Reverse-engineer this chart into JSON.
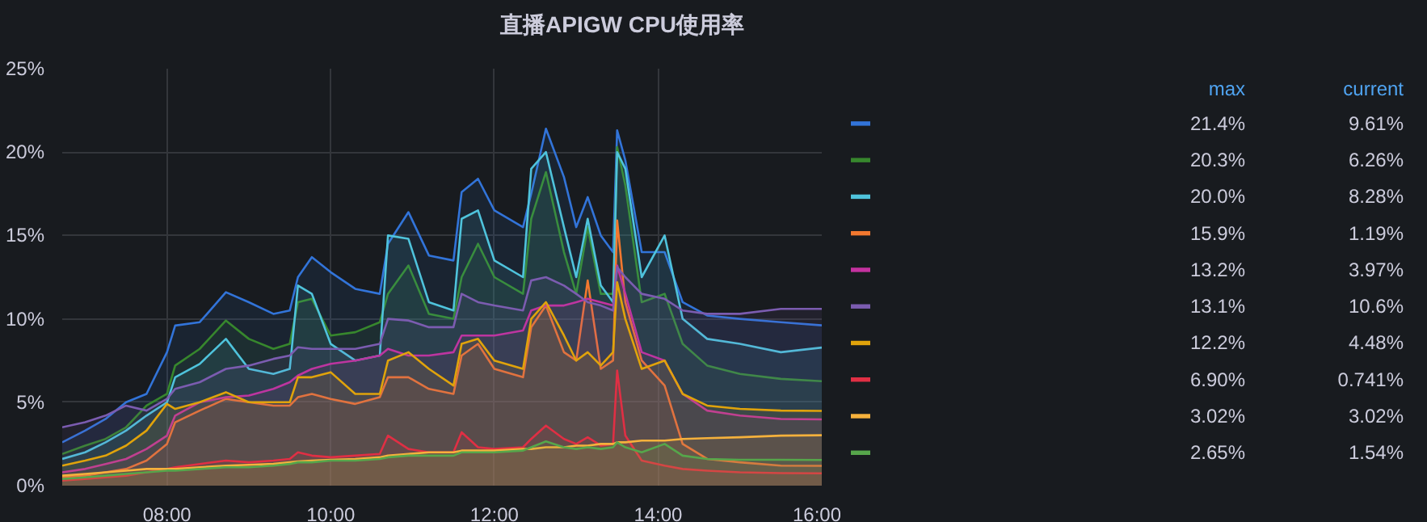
{
  "chart_data": {
    "type": "area",
    "title": "直播APIGW CPU使用率",
    "x": [
      6.72,
      7.0,
      7.25,
      7.5,
      7.75,
      8.0,
      8.1,
      8.4,
      8.72,
      9.0,
      9.3,
      9.5,
      9.6,
      9.77,
      10.0,
      10.3,
      10.6,
      10.7,
      10.95,
      11.2,
      11.5,
      11.6,
      11.8,
      12.0,
      12.35,
      12.45,
      12.63,
      12.85,
      13.0,
      13.14,
      13.3,
      13.45,
      13.5,
      13.6,
      13.8,
      14.08,
      14.3,
      14.6,
      15.0,
      15.5,
      16.0
    ],
    "series": [
      {
        "color": "#3274d9",
        "values": [
          2.6,
          3.3,
          4.0,
          5.0,
          5.5,
          8.0,
          9.6,
          9.8,
          11.6,
          11.0,
          10.3,
          10.5,
          12.5,
          13.7,
          12.8,
          11.8,
          11.5,
          14.5,
          16.4,
          13.8,
          13.5,
          17.6,
          18.4,
          16.5,
          15.5,
          17.5,
          21.4,
          18.5,
          15.5,
          17.3,
          15.0,
          14.0,
          21.3,
          19.5,
          14.0,
          14.0,
          11.0,
          10.2,
          10.0,
          9.8,
          9.61
        ]
      },
      {
        "color": "#37872d",
        "values": [
          1.9,
          2.4,
          2.8,
          3.5,
          4.8,
          5.5,
          7.2,
          8.2,
          9.9,
          8.8,
          8.2,
          8.5,
          11.0,
          11.2,
          9.0,
          9.2,
          9.8,
          11.5,
          13.2,
          10.3,
          10.0,
          12.5,
          14.5,
          12.5,
          11.5,
          16.0,
          18.8,
          14.0,
          11.5,
          15.5,
          11.5,
          11.5,
          20.3,
          18.0,
          11.0,
          11.5,
          8.5,
          7.2,
          6.7,
          6.4,
          6.26
        ]
      },
      {
        "color": "#4fc3dc",
        "values": [
          1.6,
          2.0,
          2.6,
          3.3,
          4.2,
          5.0,
          6.5,
          7.3,
          8.8,
          7.0,
          6.7,
          7.0,
          12.0,
          11.5,
          8.5,
          7.5,
          7.8,
          15.0,
          14.8,
          11.0,
          10.5,
          16.0,
          16.5,
          13.5,
          12.5,
          19.0,
          20.0,
          15.5,
          12.5,
          16.0,
          12.0,
          11.0,
          20.0,
          19.0,
          12.5,
          15.0,
          10.0,
          8.8,
          8.5,
          8.0,
          8.28
        ]
      },
      {
        "color": "#f2782f",
        "values": [
          0.5,
          0.6,
          0.8,
          1.0,
          1.5,
          2.5,
          3.8,
          4.5,
          5.2,
          5.0,
          4.8,
          4.8,
          5.3,
          5.5,
          5.2,
          4.9,
          5.3,
          6.5,
          6.5,
          5.8,
          5.5,
          7.8,
          8.5,
          7.0,
          6.5,
          9.5,
          10.8,
          8.0,
          7.5,
          12.3,
          7.0,
          7.5,
          15.9,
          11.0,
          7.5,
          6.0,
          2.5,
          1.6,
          1.4,
          1.2,
          1.19
        ]
      },
      {
        "color": "#c4329f",
        "values": [
          0.8,
          1.0,
          1.3,
          1.6,
          2.2,
          3.0,
          4.2,
          5.0,
          5.3,
          5.4,
          5.8,
          6.2,
          6.6,
          7.0,
          7.3,
          7.5,
          7.8,
          8.2,
          7.8,
          7.8,
          8.0,
          9.0,
          9.0,
          9.0,
          9.3,
          10.5,
          10.8,
          10.8,
          11.0,
          11.2,
          11.0,
          10.8,
          13.2,
          11.5,
          8.0,
          7.5,
          5.5,
          4.5,
          4.2,
          4.0,
          3.97
        ]
      },
      {
        "color": "#7b5cb0",
        "values": [
          3.5,
          3.8,
          4.2,
          4.8,
          4.5,
          5.2,
          5.8,
          6.2,
          7.0,
          7.2,
          7.6,
          7.8,
          8.3,
          8.2,
          8.2,
          8.2,
          8.5,
          10.0,
          9.9,
          9.5,
          9.5,
          11.5,
          11.0,
          10.8,
          10.5,
          12.3,
          12.5,
          12.0,
          11.5,
          11.0,
          10.8,
          10.5,
          13.1,
          12.5,
          11.5,
          11.2,
          10.5,
          10.3,
          10.3,
          10.6,
          10.6
        ]
      },
      {
        "color": "#e0a30b",
        "values": [
          1.2,
          1.5,
          1.8,
          2.4,
          3.3,
          4.9,
          4.6,
          5.0,
          5.6,
          5.0,
          5.0,
          5.0,
          6.5,
          6.5,
          6.8,
          5.5,
          5.5,
          7.5,
          8.0,
          7.0,
          6.0,
          8.5,
          8.8,
          7.5,
          7.0,
          10.0,
          11.0,
          9.0,
          7.5,
          8.0,
          7.2,
          8.0,
          12.2,
          10.0,
          7.0,
          7.5,
          5.5,
          4.8,
          4.6,
          4.5,
          4.48
        ]
      },
      {
        "color": "#e02f44",
        "values": [
          0.3,
          0.4,
          0.5,
          0.6,
          0.8,
          1.0,
          1.1,
          1.3,
          1.5,
          1.4,
          1.5,
          1.6,
          2.0,
          1.8,
          1.7,
          1.8,
          1.9,
          3.0,
          2.2,
          2.0,
          2.0,
          3.2,
          2.3,
          2.2,
          2.3,
          2.8,
          3.6,
          2.8,
          2.5,
          2.9,
          2.4,
          2.5,
          6.9,
          3.0,
          1.5,
          1.2,
          1.0,
          0.9,
          0.8,
          0.75,
          0.741
        ]
      },
      {
        "color": "#f5b13c",
        "values": [
          0.6,
          0.7,
          0.8,
          0.9,
          1.0,
          1.0,
          1.0,
          1.1,
          1.2,
          1.25,
          1.3,
          1.4,
          1.45,
          1.5,
          1.55,
          1.6,
          1.7,
          1.8,
          1.9,
          2.0,
          2.0,
          2.1,
          2.1,
          2.1,
          2.2,
          2.2,
          2.3,
          2.3,
          2.4,
          2.4,
          2.5,
          2.5,
          2.6,
          2.6,
          2.7,
          2.7,
          2.8,
          2.85,
          2.9,
          3.0,
          3.02
        ]
      },
      {
        "color": "#56a64b",
        "values": [
          0.4,
          0.5,
          0.6,
          0.7,
          0.8,
          0.9,
          0.9,
          1.0,
          1.1,
          1.1,
          1.2,
          1.3,
          1.4,
          1.4,
          1.5,
          1.5,
          1.6,
          1.7,
          1.8,
          1.8,
          1.8,
          2.0,
          2.0,
          2.0,
          2.1,
          2.3,
          2.65,
          2.3,
          2.2,
          2.3,
          2.2,
          2.3,
          2.6,
          2.3,
          2.0,
          2.5,
          1.8,
          1.6,
          1.55,
          1.55,
          1.54
        ]
      }
    ],
    "xlim": [
      6.72,
      16.0
    ],
    "xticks": [
      {
        "value": 8,
        "label": "08:00"
      },
      {
        "value": 10,
        "label": "10:00"
      },
      {
        "value": 12,
        "label": "12:00"
      },
      {
        "value": 14,
        "label": "14:00"
      },
      {
        "value": 16,
        "label": "16:00"
      }
    ],
    "ylim": [
      0,
      25
    ],
    "yticks": [
      {
        "value": 0,
        "label": "0%"
      },
      {
        "value": 5,
        "label": "5%"
      },
      {
        "value": 10,
        "label": "10%"
      },
      {
        "value": 15,
        "label": "15%"
      },
      {
        "value": 20,
        "label": "20%"
      },
      {
        "value": 25,
        "label": "25%"
      }
    ],
    "grid": true,
    "annotations": [
      "max",
      "current",
      "21.4%",
      "9.61%",
      "20.3%",
      "6.26%",
      "20.0%",
      "8.28%",
      "15.9%",
      "1.19%",
      "13.2%",
      "3.97%",
      "13.1%",
      "10.6%",
      "12.2%",
      "4.48%",
      "6.90%",
      "0.741%",
      "3.02%",
      "3.02%",
      "2.65%",
      "1.54%"
    ]
  }
}
